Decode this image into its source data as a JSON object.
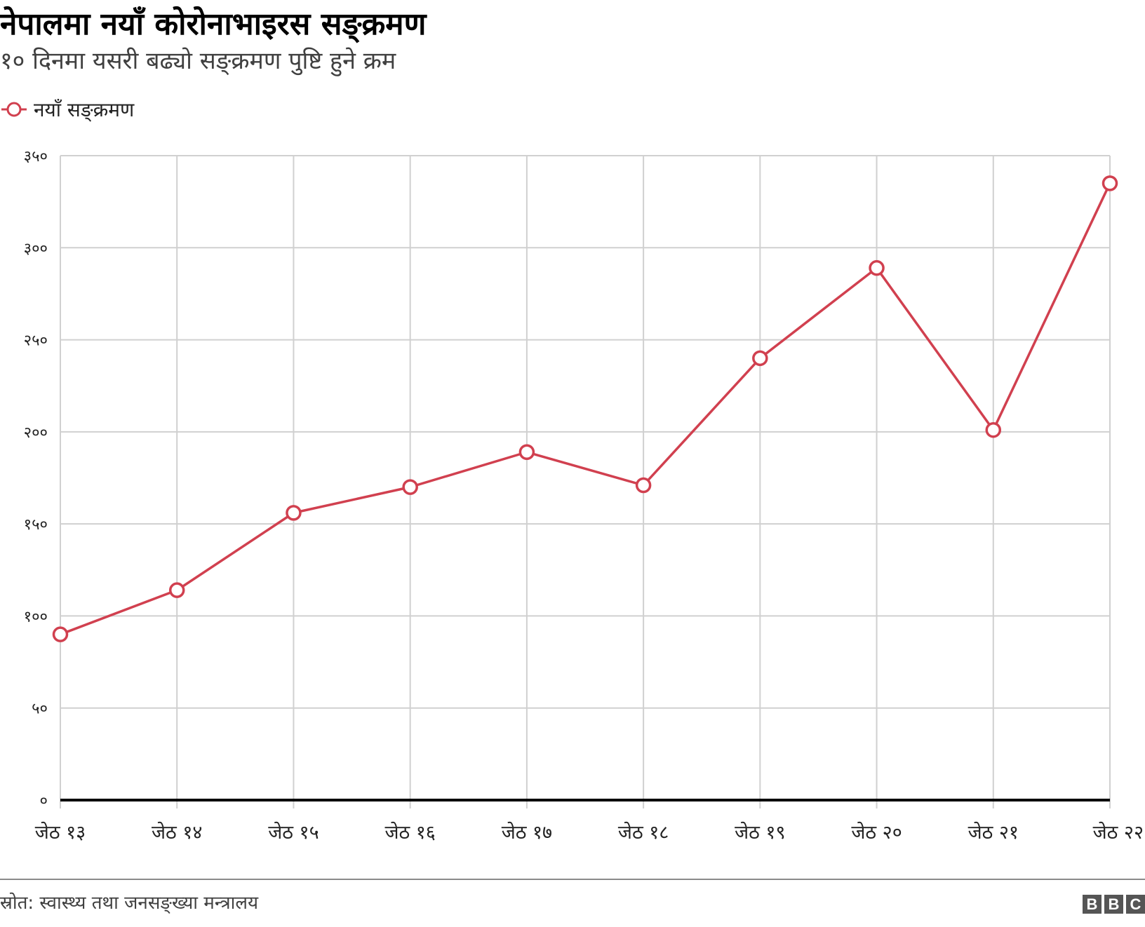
{
  "header": {
    "title": "नेपालमा नयाँ कोरोनाभाइरस सङ्क्रमण",
    "subtitle": "१० दिनमा यसरी बढ्यो सङ्क्रमण पुष्टि हुने क्रम"
  },
  "legend": {
    "label": "नयाँ सङ्क्रमण",
    "color": "#d1404f"
  },
  "chart_data": {
    "type": "line",
    "title": "नेपालमा नयाँ कोरोनाभाइरस सङ्क्रमण",
    "subtitle": "१० दिनमा यसरी बढ्यो सङ्क्रमण पुष्टि हुने क्रम",
    "xlabel": "",
    "ylabel": "",
    "categories": [
      "जेठ १३",
      "जेठ १४",
      "जेठ १५",
      "जेठ १६",
      "जेठ १७",
      "जेठ १८",
      "जेठ १९",
      "जेठ २०",
      "जेठ २१",
      "जेठ २२"
    ],
    "series": [
      {
        "name": "नयाँ सङ्क्रमण",
        "color": "#d1404f",
        "values": [
          90,
          114,
          156,
          170,
          189,
          171,
          240,
          289,
          201,
          335
        ]
      }
    ],
    "ylim": [
      0,
      350
    ],
    "yticks": [
      0,
      50,
      100,
      150,
      200,
      250,
      300,
      350
    ],
    "ytick_labels": [
      "०",
      "५०",
      "१००",
      "१५०",
      "२००",
      "२५०",
      "३००",
      "३५०"
    ],
    "grid": true,
    "legend_position": "top-left"
  },
  "footer": {
    "source": "स्रोत: स्वास्थ्य तथा जनसङ्ख्या मन्त्रालय",
    "logo_letters": [
      "B",
      "B",
      "C"
    ]
  }
}
